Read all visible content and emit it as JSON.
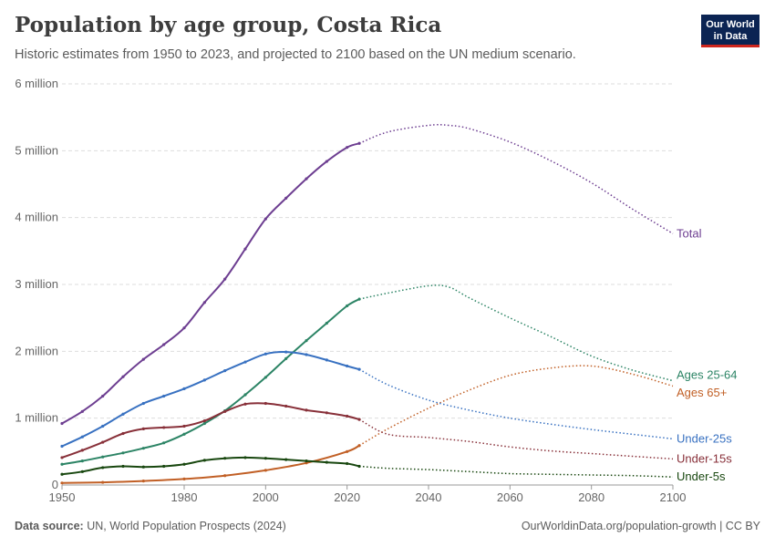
{
  "header": {
    "title": "Population by age group, Costa Rica",
    "subtitle": "Historic estimates from 1950 to 2023, and projected to 2100 based on the UN medium scenario."
  },
  "logo": {
    "line1": "Our World",
    "line2": "in Data",
    "bg_color": "#0b2453",
    "accent_color": "#ce261e"
  },
  "footer": {
    "source_label": "Data source:",
    "source_text": "UN, World Population Prospects (2024)",
    "url_text": "OurWorldinData.org/population-growth | CC BY"
  },
  "chart_data": {
    "type": "line",
    "title": "Population by age group, Costa Rica",
    "xlim": [
      1950,
      2100
    ],
    "ylim": [
      0,
      6000000
    ],
    "x_ticks": [
      1950,
      1980,
      2000,
      2020,
      2040,
      2060,
      2080,
      2100
    ],
    "y_ticks": [
      0,
      1000000,
      2000000,
      3000000,
      4000000,
      5000000,
      6000000
    ],
    "y_tick_labels": [
      "0",
      "1 million",
      "2 million",
      "3 million",
      "4 million",
      "5 million",
      "6 million"
    ],
    "grid": "horizontal dashed",
    "legend": "inline labels at right end of lines",
    "historic_end_year": 2023,
    "series": [
      {
        "name": "Total",
        "color": "#6d3e91",
        "points": [
          [
            1950,
            920000
          ],
          [
            1955,
            1100000
          ],
          [
            1960,
            1330000
          ],
          [
            1965,
            1620000
          ],
          [
            1970,
            1880000
          ],
          [
            1975,
            2100000
          ],
          [
            1980,
            2350000
          ],
          [
            1985,
            2730000
          ],
          [
            1990,
            3080000
          ],
          [
            1995,
            3530000
          ],
          [
            2000,
            3980000
          ],
          [
            2005,
            4290000
          ],
          [
            2010,
            4580000
          ],
          [
            2015,
            4840000
          ],
          [
            2020,
            5050000
          ],
          [
            2023,
            5110000
          ],
          [
            2030,
            5280000
          ],
          [
            2040,
            5380000
          ],
          [
            2045,
            5380000
          ],
          [
            2050,
            5330000
          ],
          [
            2060,
            5130000
          ],
          [
            2070,
            4850000
          ],
          [
            2080,
            4520000
          ],
          [
            2090,
            4130000
          ],
          [
            2100,
            3760000
          ]
        ]
      },
      {
        "name": "Ages 25-64",
        "color": "#2c8465",
        "points": [
          [
            1950,
            310000
          ],
          [
            1955,
            360000
          ],
          [
            1960,
            420000
          ],
          [
            1965,
            480000
          ],
          [
            1970,
            550000
          ],
          [
            1975,
            630000
          ],
          [
            1980,
            760000
          ],
          [
            1985,
            920000
          ],
          [
            1990,
            1110000
          ],
          [
            1995,
            1350000
          ],
          [
            2000,
            1610000
          ],
          [
            2005,
            1890000
          ],
          [
            2010,
            2160000
          ],
          [
            2015,
            2420000
          ],
          [
            2020,
            2680000
          ],
          [
            2023,
            2780000
          ],
          [
            2030,
            2870000
          ],
          [
            2040,
            2980000
          ],
          [
            2045,
            2960000
          ],
          [
            2050,
            2800000
          ],
          [
            2060,
            2500000
          ],
          [
            2070,
            2220000
          ],
          [
            2080,
            1930000
          ],
          [
            2090,
            1720000
          ],
          [
            2100,
            1560000
          ]
        ]
      },
      {
        "name": "Ages 65+",
        "color": "#c15f25",
        "points": [
          [
            1950,
            30000
          ],
          [
            1960,
            40000
          ],
          [
            1970,
            60000
          ],
          [
            1980,
            90000
          ],
          [
            1990,
            140000
          ],
          [
            2000,
            220000
          ],
          [
            2010,
            330000
          ],
          [
            2020,
            500000
          ],
          [
            2023,
            590000
          ],
          [
            2030,
            840000
          ],
          [
            2040,
            1150000
          ],
          [
            2050,
            1420000
          ],
          [
            2060,
            1640000
          ],
          [
            2070,
            1750000
          ],
          [
            2080,
            1780000
          ],
          [
            2090,
            1660000
          ],
          [
            2100,
            1480000
          ]
        ]
      },
      {
        "name": "Under-25s",
        "color": "#3871c1",
        "points": [
          [
            1950,
            580000
          ],
          [
            1955,
            720000
          ],
          [
            1960,
            880000
          ],
          [
            1965,
            1060000
          ],
          [
            1970,
            1220000
          ],
          [
            1975,
            1330000
          ],
          [
            1980,
            1440000
          ],
          [
            1985,
            1570000
          ],
          [
            1990,
            1710000
          ],
          [
            1995,
            1840000
          ],
          [
            2000,
            1960000
          ],
          [
            2005,
            1990000
          ],
          [
            2010,
            1950000
          ],
          [
            2015,
            1870000
          ],
          [
            2020,
            1780000
          ],
          [
            2023,
            1730000
          ],
          [
            2030,
            1500000
          ],
          [
            2040,
            1270000
          ],
          [
            2050,
            1120000
          ],
          [
            2060,
            1000000
          ],
          [
            2070,
            910000
          ],
          [
            2080,
            830000
          ],
          [
            2090,
            760000
          ],
          [
            2100,
            690000
          ]
        ]
      },
      {
        "name": "Under-15s",
        "color": "#883039",
        "points": [
          [
            1950,
            410000
          ],
          [
            1955,
            520000
          ],
          [
            1960,
            640000
          ],
          [
            1965,
            770000
          ],
          [
            1970,
            840000
          ],
          [
            1975,
            860000
          ],
          [
            1980,
            880000
          ],
          [
            1985,
            960000
          ],
          [
            1990,
            1100000
          ],
          [
            1995,
            1210000
          ],
          [
            2000,
            1220000
          ],
          [
            2005,
            1180000
          ],
          [
            2010,
            1120000
          ],
          [
            2015,
            1080000
          ],
          [
            2020,
            1030000
          ],
          [
            2023,
            980000
          ],
          [
            2030,
            760000
          ],
          [
            2040,
            710000
          ],
          [
            2050,
            650000
          ],
          [
            2060,
            570000
          ],
          [
            2070,
            510000
          ],
          [
            2080,
            470000
          ],
          [
            2090,
            430000
          ],
          [
            2100,
            390000
          ]
        ]
      },
      {
        "name": "Under-5s",
        "color": "#18470f",
        "points": [
          [
            1950,
            160000
          ],
          [
            1955,
            200000
          ],
          [
            1960,
            260000
          ],
          [
            1965,
            280000
          ],
          [
            1970,
            270000
          ],
          [
            1975,
            280000
          ],
          [
            1980,
            310000
          ],
          [
            1985,
            370000
          ],
          [
            1990,
            400000
          ],
          [
            1995,
            410000
          ],
          [
            2000,
            400000
          ],
          [
            2005,
            380000
          ],
          [
            2010,
            360000
          ],
          [
            2015,
            340000
          ],
          [
            2020,
            320000
          ],
          [
            2023,
            280000
          ],
          [
            2030,
            250000
          ],
          [
            2040,
            230000
          ],
          [
            2050,
            200000
          ],
          [
            2060,
            170000
          ],
          [
            2070,
            160000
          ],
          [
            2080,
            150000
          ],
          [
            2090,
            140000
          ],
          [
            2100,
            120000
          ]
        ]
      }
    ],
    "label_positions": {
      "Total": 3760000,
      "Ages 25-64": 1640000,
      "Ages 65+": 1380000,
      "Under-25s": 690000,
      "Under-15s": 390000,
      "Under-5s": 120000
    }
  }
}
